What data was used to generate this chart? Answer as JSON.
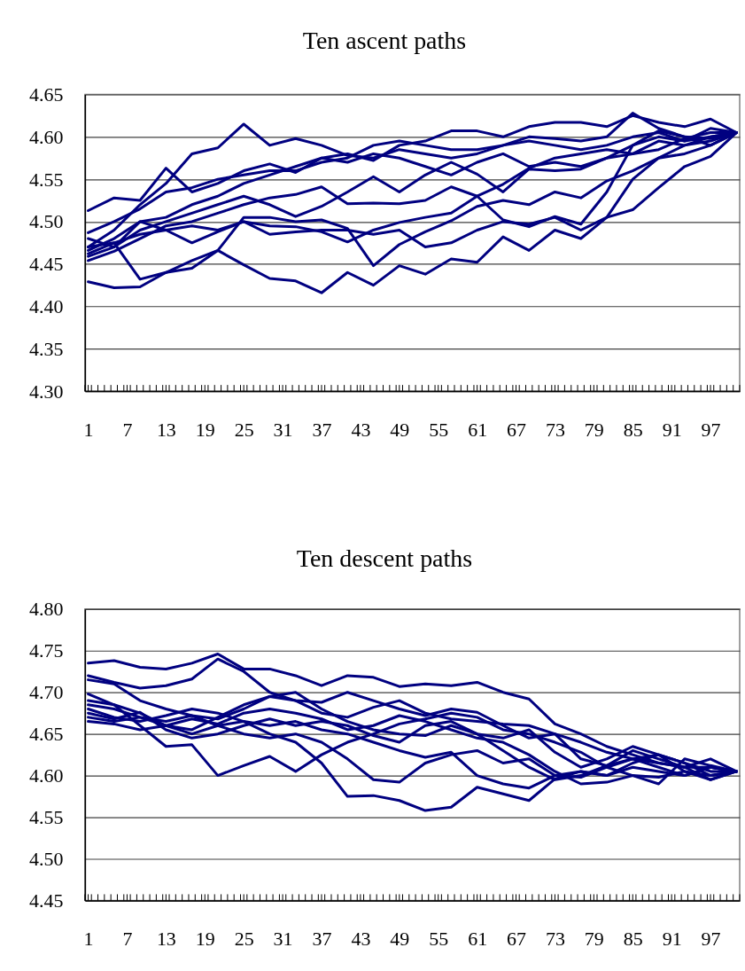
{
  "chart_data": [
    {
      "type": "line",
      "title": "Ten ascent paths",
      "grid": "y",
      "xlim": [
        0.5,
        101.5
      ],
      "ylim": [
        4.3,
        4.65
      ],
      "yticks": [
        {
          "value": 4.3,
          "label": "4.30"
        },
        {
          "value": 4.35,
          "label": "4.35"
        },
        {
          "value": 4.4,
          "label": "4.40"
        },
        {
          "value": 4.45,
          "label": "4.45"
        },
        {
          "value": 4.5,
          "label": "4.50"
        },
        {
          "value": 4.55,
          "label": "4.55"
        },
        {
          "value": 4.6,
          "label": "4.60"
        },
        {
          "value": 4.65,
          "label": "4.65"
        }
      ],
      "xticks": [
        1,
        7,
        13,
        19,
        25,
        31,
        37,
        43,
        49,
        55,
        61,
        67,
        73,
        79,
        85,
        91,
        97,
        {
          "value": 0.5,
          "label": null
        },
        {
          "value": 1.5,
          "label": null
        },
        {
          "value": 2.5,
          "label": null
        },
        {
          "value": 3.5,
          "label": null
        },
        {
          "value": 4.5,
          "label": null
        },
        {
          "value": 5.5,
          "label": null
        },
        {
          "value": 6.5,
          "label": null
        },
        {
          "value": 7.5,
          "label": null
        },
        {
          "value": 8.5,
          "label": null
        },
        {
          "value": 9.5,
          "label": null
        },
        {
          "value": 10.5,
          "label": null
        },
        {
          "value": 11.5,
          "label": null
        },
        {
          "value": 12.5,
          "label": null
        },
        {
          "value": 13.5,
          "label": null
        },
        {
          "value": 14.5,
          "label": null
        },
        {
          "value": 15.5,
          "label": null
        },
        {
          "value": 16.5,
          "label": null
        },
        {
          "value": 17.5,
          "label": null
        },
        {
          "value": 18.5,
          "label": null
        },
        {
          "value": 19.5,
          "label": null
        },
        {
          "value": 20.5,
          "label": null
        },
        {
          "value": 21.5,
          "label": null
        },
        {
          "value": 22.5,
          "label": null
        },
        {
          "value": 23.5,
          "label": null
        },
        {
          "value": 24.5,
          "label": null
        },
        {
          "value": 25.5,
          "label": null
        },
        {
          "value": 26.5,
          "label": null
        },
        {
          "value": 27.5,
          "label": null
        },
        {
          "value": 28.5,
          "label": null
        },
        {
          "value": 29.5,
          "label": null
        },
        {
          "value": 30.5,
          "label": null
        },
        {
          "value": 31.5,
          "label": null
        },
        {
          "value": 32.5,
          "label": null
        },
        {
          "value": 33.5,
          "label": null
        },
        {
          "value": 34.5,
          "label": null
        },
        {
          "value": 35.5,
          "label": null
        },
        {
          "value": 36.5,
          "label": null
        },
        {
          "value": 37.5,
          "label": null
        },
        {
          "value": 38.5,
          "label": null
        },
        {
          "value": 39.5,
          "label": null
        },
        {
          "value": 40.5,
          "label": null
        },
        {
          "value": 41.5,
          "label": null
        },
        {
          "value": 42.5,
          "label": null
        },
        {
          "value": 43.5,
          "label": null
        },
        {
          "value": 44.5,
          "label": null
        },
        {
          "value": 45.5,
          "label": null
        },
        {
          "value": 46.5,
          "label": null
        },
        {
          "value": 47.5,
          "label": null
        },
        {
          "value": 48.5,
          "label": null
        },
        {
          "value": 49.5,
          "label": null
        },
        {
          "value": 50.5,
          "label": null
        },
        {
          "value": 51.5,
          "label": null
        },
        {
          "value": 52.5,
          "label": null
        },
        {
          "value": 53.5,
          "label": null
        },
        {
          "value": 54.5,
          "label": null
        },
        {
          "value": 55.5,
          "label": null
        },
        {
          "value": 56.5,
          "label": null
        },
        {
          "value": 57.5,
          "label": null
        },
        {
          "value": 58.5,
          "label": null
        },
        {
          "value": 59.5,
          "label": null
        },
        {
          "value": 60.5,
          "label": null
        },
        {
          "value": 61.5,
          "label": null
        },
        {
          "value": 62.5,
          "label": null
        },
        {
          "value": 63.5,
          "label": null
        },
        {
          "value": 64.5,
          "label": null
        },
        {
          "value": 65.5,
          "label": null
        },
        {
          "value": 66.5,
          "label": null
        },
        {
          "value": 67.5,
          "label": null
        },
        {
          "value": 68.5,
          "label": null
        },
        {
          "value": 69.5,
          "label": null
        },
        {
          "value": 70.5,
          "label": null
        },
        {
          "value": 71.5,
          "label": null
        },
        {
          "value": 72.5,
          "label": null
        },
        {
          "value": 73.5,
          "label": null
        },
        {
          "value": 74.5,
          "label": null
        },
        {
          "value": 75.5,
          "label": null
        },
        {
          "value": 76.5,
          "label": null
        },
        {
          "value": 77.5,
          "label": null
        },
        {
          "value": 78.5,
          "label": null
        },
        {
          "value": 79.5,
          "label": null
        },
        {
          "value": 80.5,
          "label": null
        },
        {
          "value": 81.5,
          "label": null
        },
        {
          "value": 82.5,
          "label": null
        },
        {
          "value": 83.5,
          "label": null
        },
        {
          "value": 84.5,
          "label": null
        },
        {
          "value": 85.5,
          "label": null
        },
        {
          "value": 86.5,
          "label": null
        },
        {
          "value": 87.5,
          "label": null
        },
        {
          "value": 88.5,
          "label": null
        },
        {
          "value": 89.5,
          "label": null
        },
        {
          "value": 90.5,
          "label": null
        },
        {
          "value": 91.5,
          "label": null
        },
        {
          "value": 92.5,
          "label": null
        },
        {
          "value": 93.5,
          "label": null
        },
        {
          "value": 94.5,
          "label": null
        },
        {
          "value": 95.5,
          "label": null
        },
        {
          "value": 96.5,
          "label": null
        },
        {
          "value": 97.5,
          "label": null
        },
        {
          "value": 98.5,
          "label": null
        },
        {
          "value": 99.5,
          "label": null
        },
        {
          "value": 100.5,
          "label": null
        },
        {
          "value": 101.5,
          "label": null
        }
      ],
      "x": [
        1,
        5,
        9,
        13,
        17,
        21,
        25,
        29,
        33,
        37,
        41,
        45,
        49,
        53,
        57,
        61,
        65,
        69,
        73,
        77,
        81,
        85,
        89,
        93,
        97,
        101
      ],
      "series": [
        {
          "color": "#000080",
          "values": [
            4.47,
            4.49,
            4.52,
            4.545,
            4.58,
            4.587,
            4.615,
            4.59,
            4.598,
            4.59,
            4.578,
            4.575,
            4.585,
            4.58,
            4.575,
            4.58,
            4.59,
            4.595,
            4.59,
            4.585,
            4.59,
            4.6,
            4.605,
            4.595,
            4.6,
            4.605
          ]
        },
        {
          "color": "#000080",
          "values": [
            4.513,
            4.528,
            4.525,
            4.563,
            4.535,
            4.545,
            4.56,
            4.568,
            4.558,
            4.575,
            4.58,
            4.572,
            4.59,
            4.595,
            4.607,
            4.607,
            4.6,
            4.612,
            4.617,
            4.617,
            4.612,
            4.625,
            4.617,
            4.612,
            4.621,
            4.605
          ]
        },
        {
          "color": "#000080",
          "values": [
            4.487,
            4.5,
            4.515,
            4.535,
            4.54,
            4.55,
            4.555,
            4.56,
            4.56,
            4.57,
            4.575,
            4.59,
            4.595,
            4.59,
            4.585,
            4.585,
            4.59,
            4.6,
            4.598,
            4.595,
            4.6,
            4.628,
            4.61,
            4.6,
            4.598,
            4.605
          ]
        },
        {
          "color": "#000080",
          "values": [
            4.466,
            4.48,
            4.5,
            4.505,
            4.52,
            4.53,
            4.545,
            4.555,
            4.565,
            4.575,
            4.57,
            4.58,
            4.575,
            4.565,
            4.555,
            4.57,
            4.58,
            4.565,
            4.57,
            4.565,
            4.575,
            4.59,
            4.6,
            4.595,
            4.61,
            4.605
          ]
        },
        {
          "color": "#000080",
          "values": [
            4.459,
            4.47,
            4.49,
            4.5,
            4.51,
            4.52,
            4.53,
            4.52,
            4.506,
            4.518,
            4.535,
            4.553,
            4.535,
            4.555,
            4.57,
            4.556,
            4.535,
            4.562,
            4.56,
            4.562,
            4.575,
            4.58,
            4.585,
            4.598,
            4.605,
            4.605
          ]
        },
        {
          "color": "#000080",
          "values": [
            4.454,
            4.465,
            4.48,
            4.495,
            4.5,
            4.51,
            4.52,
            4.528,
            4.532,
            4.541,
            4.521,
            4.522,
            4.521,
            4.525,
            4.541,
            4.53,
            4.502,
            4.494,
            4.506,
            4.497,
            4.535,
            4.59,
            4.607,
            4.6,
            4.59,
            4.605
          ]
        },
        {
          "color": "#000080",
          "values": [
            4.462,
            4.475,
            4.485,
            4.49,
            4.495,
            4.49,
            4.5,
            4.495,
            4.494,
            4.488,
            4.476,
            4.49,
            4.499,
            4.505,
            4.51,
            4.53,
            4.544,
            4.563,
            4.575,
            4.58,
            4.585,
            4.58,
            4.595,
            4.59,
            4.6,
            4.605
          ]
        },
        {
          "color": "#000080",
          "values": [
            4.47,
            4.475,
            4.432,
            4.44,
            4.454,
            4.466,
            4.505,
            4.505,
            4.5,
            4.502,
            4.492,
            4.448,
            4.473,
            4.488,
            4.501,
            4.518,
            4.525,
            4.52,
            4.535,
            4.528,
            4.548,
            4.56,
            4.575,
            4.58,
            4.59,
            4.605
          ]
        },
        {
          "color": "#000080",
          "values": [
            4.48,
            4.47,
            4.5,
            4.49,
            4.475,
            4.488,
            4.5,
            4.485,
            4.488,
            4.49,
            4.49,
            4.485,
            4.49,
            4.47,
            4.475,
            4.49,
            4.5,
            4.497,
            4.505,
            4.49,
            4.505,
            4.55,
            4.575,
            4.59,
            4.595,
            4.605
          ]
        },
        {
          "color": "#000080",
          "values": [
            4.429,
            4.422,
            4.423,
            4.44,
            4.445,
            4.466,
            4.449,
            4.433,
            4.43,
            4.416,
            4.44,
            4.425,
            4.448,
            4.438,
            4.456,
            4.452,
            4.482,
            4.466,
            4.49,
            4.48,
            4.505,
            4.514,
            4.54,
            4.565,
            4.577,
            4.605
          ]
        }
      ]
    },
    {
      "type": "line",
      "title": "Ten descent paths",
      "grid": "y",
      "xlim": [
        0.5,
        101.5
      ],
      "ylim": [
        4.45,
        4.8
      ],
      "yticks": [
        {
          "value": 4.45,
          "label": "4.45"
        },
        {
          "value": 4.5,
          "label": "4.50"
        },
        {
          "value": 4.55,
          "label": "4.55"
        },
        {
          "value": 4.6,
          "label": "4.60"
        },
        {
          "value": 4.65,
          "label": "4.65"
        },
        {
          "value": 4.7,
          "label": "4.70"
        },
        {
          "value": 4.75,
          "label": "4.75"
        },
        {
          "value": 4.8,
          "label": "4.80"
        }
      ],
      "xticks": [
        1,
        7,
        13,
        19,
        25,
        31,
        37,
        43,
        49,
        55,
        61,
        67,
        73,
        79,
        85,
        91,
        97,
        {
          "value": 0.5,
          "label": null
        },
        {
          "value": 1.5,
          "label": null
        },
        {
          "value": 2.5,
          "label": null
        },
        {
          "value": 3.5,
          "label": null
        },
        {
          "value": 4.5,
          "label": null
        },
        {
          "value": 5.5,
          "label": null
        },
        {
          "value": 6.5,
          "label": null
        },
        {
          "value": 7.5,
          "label": null
        },
        {
          "value": 8.5,
          "label": null
        },
        {
          "value": 9.5,
          "label": null
        },
        {
          "value": 10.5,
          "label": null
        },
        {
          "value": 11.5,
          "label": null
        },
        {
          "value": 12.5,
          "label": null
        },
        {
          "value": 13.5,
          "label": null
        },
        {
          "value": 14.5,
          "label": null
        },
        {
          "value": 15.5,
          "label": null
        },
        {
          "value": 16.5,
          "label": null
        },
        {
          "value": 17.5,
          "label": null
        },
        {
          "value": 18.5,
          "label": null
        },
        {
          "value": 19.5,
          "label": null
        },
        {
          "value": 20.5,
          "label": null
        },
        {
          "value": 21.5,
          "label": null
        },
        {
          "value": 22.5,
          "label": null
        },
        {
          "value": 23.5,
          "label": null
        },
        {
          "value": 24.5,
          "label": null
        },
        {
          "value": 25.5,
          "label": null
        },
        {
          "value": 26.5,
          "label": null
        },
        {
          "value": 27.5,
          "label": null
        },
        {
          "value": 28.5,
          "label": null
        },
        {
          "value": 29.5,
          "label": null
        },
        {
          "value": 30.5,
          "label": null
        },
        {
          "value": 31.5,
          "label": null
        },
        {
          "value": 32.5,
          "label": null
        },
        {
          "value": 33.5,
          "label": null
        },
        {
          "value": 34.5,
          "label": null
        },
        {
          "value": 35.5,
          "label": null
        },
        {
          "value": 36.5,
          "label": null
        },
        {
          "value": 37.5,
          "label": null
        },
        {
          "value": 38.5,
          "label": null
        },
        {
          "value": 39.5,
          "label": null
        },
        {
          "value": 40.5,
          "label": null
        },
        {
          "value": 41.5,
          "label": null
        },
        {
          "value": 42.5,
          "label": null
        },
        {
          "value": 43.5,
          "label": null
        },
        {
          "value": 44.5,
          "label": null
        },
        {
          "value": 45.5,
          "label": null
        },
        {
          "value": 46.5,
          "label": null
        },
        {
          "value": 47.5,
          "label": null
        },
        {
          "value": 48.5,
          "label": null
        },
        {
          "value": 49.5,
          "label": null
        },
        {
          "value": 50.5,
          "label": null
        },
        {
          "value": 51.5,
          "label": null
        },
        {
          "value": 52.5,
          "label": null
        },
        {
          "value": 53.5,
          "label": null
        },
        {
          "value": 54.5,
          "label": null
        },
        {
          "value": 55.5,
          "label": null
        },
        {
          "value": 56.5,
          "label": null
        },
        {
          "value": 57.5,
          "label": null
        },
        {
          "value": 58.5,
          "label": null
        },
        {
          "value": 59.5,
          "label": null
        },
        {
          "value": 60.5,
          "label": null
        },
        {
          "value": 61.5,
          "label": null
        },
        {
          "value": 62.5,
          "label": null
        },
        {
          "value": 63.5,
          "label": null
        },
        {
          "value": 64.5,
          "label": null
        },
        {
          "value": 65.5,
          "label": null
        },
        {
          "value": 66.5,
          "label": null
        },
        {
          "value": 67.5,
          "label": null
        },
        {
          "value": 68.5,
          "label": null
        },
        {
          "value": 69.5,
          "label": null
        },
        {
          "value": 70.5,
          "label": null
        },
        {
          "value": 71.5,
          "label": null
        },
        {
          "value": 72.5,
          "label": null
        },
        {
          "value": 73.5,
          "label": null
        },
        {
          "value": 74.5,
          "label": null
        },
        {
          "value": 75.5,
          "label": null
        },
        {
          "value": 76.5,
          "label": null
        },
        {
          "value": 77.5,
          "label": null
        },
        {
          "value": 78.5,
          "label": null
        },
        {
          "value": 79.5,
          "label": null
        },
        {
          "value": 80.5,
          "label": null
        },
        {
          "value": 81.5,
          "label": null
        },
        {
          "value": 82.5,
          "label": null
        },
        {
          "value": 83.5,
          "label": null
        },
        {
          "value": 84.5,
          "label": null
        },
        {
          "value": 85.5,
          "label": null
        },
        {
          "value": 86.5,
          "label": null
        },
        {
          "value": 87.5,
          "label": null
        },
        {
          "value": 88.5,
          "label": null
        },
        {
          "value": 89.5,
          "label": null
        },
        {
          "value": 90.5,
          "label": null
        },
        {
          "value": 91.5,
          "label": null
        },
        {
          "value": 92.5,
          "label": null
        },
        {
          "value": 93.5,
          "label": null
        },
        {
          "value": 94.5,
          "label": null
        },
        {
          "value": 95.5,
          "label": null
        },
        {
          "value": 96.5,
          "label": null
        },
        {
          "value": 97.5,
          "label": null
        },
        {
          "value": 98.5,
          "label": null
        },
        {
          "value": 99.5,
          "label": null
        },
        {
          "value": 100.5,
          "label": null
        },
        {
          "value": 101.5,
          "label": null
        }
      ],
      "x": [
        1,
        5,
        9,
        13,
        17,
        21,
        25,
        29,
        33,
        37,
        41,
        45,
        49,
        53,
        57,
        61,
        65,
        69,
        73,
        77,
        81,
        85,
        89,
        93,
        97,
        101
      ],
      "series": [
        {
          "color": "#000080",
          "values": [
            4.735,
            4.738,
            4.73,
            4.728,
            4.735,
            4.746,
            4.728,
            4.728,
            4.72,
            4.708,
            4.72,
            4.718,
            4.707,
            4.71,
            4.708,
            4.712,
            4.7,
            4.692,
            4.662,
            4.65,
            4.635,
            4.625,
            4.615,
            4.61,
            4.62,
            4.605
          ]
        },
        {
          "color": "#000080",
          "values": [
            4.72,
            4.712,
            4.705,
            4.708,
            4.716,
            4.74,
            4.725,
            4.7,
            4.69,
            4.675,
            4.67,
            4.682,
            4.69,
            4.675,
            4.668,
            4.665,
            4.662,
            4.66,
            4.65,
            4.64,
            4.628,
            4.62,
            4.61,
            4.6,
            4.61,
            4.605
          ]
        },
        {
          "color": "#000080",
          "values": [
            4.715,
            4.71,
            4.69,
            4.68,
            4.672,
            4.668,
            4.68,
            4.695,
            4.69,
            4.688,
            4.7,
            4.69,
            4.68,
            4.672,
            4.68,
            4.676,
            4.66,
            4.645,
            4.65,
            4.62,
            4.612,
            4.62,
            4.625,
            4.615,
            4.605,
            4.605
          ]
        },
        {
          "color": "#000080",
          "values": [
            4.698,
            4.685,
            4.66,
            4.635,
            4.637,
            4.6,
            4.612,
            4.623,
            4.605,
            4.625,
            4.64,
            4.65,
            4.662,
            4.668,
            4.675,
            4.67,
            4.655,
            4.65,
            4.64,
            4.628,
            4.61,
            4.6,
            4.598,
            4.605,
            4.595,
            4.605
          ]
        },
        {
          "color": "#000080",
          "values": [
            4.69,
            4.685,
            4.675,
            4.66,
            4.65,
            4.66,
            4.665,
            4.65,
            4.64,
            4.615,
            4.575,
            4.576,
            4.57,
            4.558,
            4.562,
            4.586,
            4.578,
            4.57,
            4.596,
            4.605,
            4.6,
            4.61,
            4.605,
            4.6,
            4.61,
            4.605
          ]
        },
        {
          "color": "#000080",
          "values": [
            4.685,
            4.68,
            4.67,
            4.665,
            4.672,
            4.66,
            4.65,
            4.645,
            4.65,
            4.64,
            4.62,
            4.595,
            4.592,
            4.615,
            4.625,
            4.63,
            4.615,
            4.62,
            4.6,
            4.598,
            4.61,
            4.62,
            4.615,
            4.61,
            4.595,
            4.605
          ]
        },
        {
          "color": "#000080",
          "values": [
            4.68,
            4.67,
            4.665,
            4.672,
            4.68,
            4.675,
            4.665,
            4.66,
            4.665,
            4.655,
            4.65,
            4.64,
            4.63,
            4.622,
            4.628,
            4.6,
            4.59,
            4.585,
            4.6,
            4.605,
            4.6,
            4.615,
            4.625,
            4.615,
            4.6,
            4.605
          ]
        },
        {
          "color": "#000080",
          "values": [
            4.67,
            4.665,
            4.67,
            4.66,
            4.655,
            4.67,
            4.685,
            4.695,
            4.7,
            4.68,
            4.665,
            4.655,
            4.65,
            4.648,
            4.66,
            4.65,
            4.63,
            4.61,
            4.595,
            4.6,
            4.612,
            4.63,
            4.62,
            4.61,
            4.61,
            4.605
          ]
        },
        {
          "color": "#000080",
          "values": [
            4.665,
            4.662,
            4.655,
            4.66,
            4.668,
            4.662,
            4.675,
            4.68,
            4.675,
            4.668,
            4.655,
            4.66,
            4.672,
            4.665,
            4.655,
            4.645,
            4.64,
            4.625,
            4.605,
            4.59,
            4.592,
            4.6,
            4.59,
            4.62,
            4.612,
            4.605
          ]
        },
        {
          "color": "#000080",
          "values": [
            4.675,
            4.668,
            4.676,
            4.655,
            4.645,
            4.65,
            4.66,
            4.668,
            4.66,
            4.665,
            4.66,
            4.648,
            4.64,
            4.66,
            4.665,
            4.65,
            4.645,
            4.655,
            4.628,
            4.61,
            4.62,
            4.635,
            4.625,
            4.605,
            4.6,
            4.605
          ]
        }
      ]
    }
  ]
}
